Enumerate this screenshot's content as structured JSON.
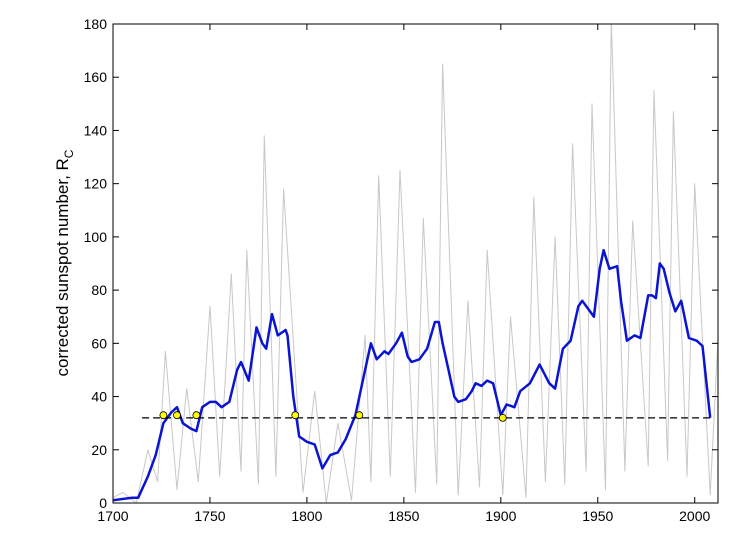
{
  "chart_data": {
    "type": "line",
    "ylabel": "corrected sunspot number, R",
    "ylabel_subscript": "C",
    "xlim": [
      1700,
      2012
    ],
    "xticks": [
      1700,
      1750,
      1800,
      1850,
      1900,
      1950,
      2000
    ],
    "ylim": [
      0,
      180
    ],
    "yticks": [
      0,
      20,
      40,
      60,
      80,
      100,
      120,
      140,
      160,
      180
    ],
    "series": [
      {
        "color": "#c8c8c8",
        "width": 1,
        "x": [
          1700,
          1705,
          1712,
          1718,
          1723,
          1727,
          1733,
          1738,
          1744,
          1750,
          1755,
          1761,
          1766,
          1769,
          1775,
          1778,
          1784,
          1788,
          1798,
          1804,
          1810,
          1816,
          1823,
          1830,
          1833,
          1837,
          1843,
          1848,
          1856,
          1860,
          1867,
          1870,
          1878,
          1883,
          1889,
          1893,
          1901,
          1905,
          1913,
          1917,
          1923,
          1928,
          1933,
          1937,
          1944,
          1947,
          1954,
          1957,
          1964,
          1968,
          1976,
          1979,
          1986,
          1989,
          1996,
          2000,
          2008,
          2012
        ],
        "values": [
          2,
          4,
          0,
          20,
          8,
          57,
          5,
          43,
          8,
          74,
          10,
          86,
          12,
          95,
          7,
          138,
          10,
          118,
          4,
          42,
          0,
          30,
          1,
          63,
          8,
          123,
          10,
          125,
          4,
          107,
          7,
          165,
          3,
          76,
          6,
          95,
          3,
          70,
          2,
          115,
          8,
          100,
          7,
          135,
          12,
          150,
          5,
          182,
          12,
          106,
          14,
          155,
          16,
          147,
          10,
          120,
          3,
          62
        ]
      },
      {
        "color": "#0a14d2",
        "width": 2.5,
        "x": [
          1700,
          1710,
          1713,
          1718,
          1722,
          1726,
          1730,
          1733,
          1736,
          1740,
          1743,
          1746,
          1750,
          1753,
          1756,
          1760,
          1764,
          1766,
          1770,
          1774,
          1777,
          1779,
          1782,
          1785,
          1789,
          1790,
          1793,
          1796,
          1800,
          1804,
          1808,
          1812,
          1816,
          1820,
          1825,
          1830,
          1833,
          1836,
          1840,
          1842,
          1846,
          1849,
          1852,
          1854,
          1858,
          1862,
          1866,
          1868,
          1870,
          1873,
          1876,
          1878,
          1882,
          1885,
          1887,
          1890,
          1893,
          1896,
          1900,
          1903,
          1907,
          1910,
          1915,
          1920,
          1925,
          1928,
          1932,
          1936,
          1940,
          1942,
          1946,
          1948,
          1951,
          1953,
          1956,
          1960,
          1962,
          1965,
          1969,
          1972,
          1976,
          1978,
          1980,
          1982,
          1984,
          1987,
          1990,
          1993,
          1997,
          2001,
          2004,
          2008
        ],
        "values": [
          1,
          2,
          2,
          10,
          18,
          30,
          34,
          36,
          30,
          28,
          27,
          36,
          38,
          38,
          36,
          38,
          50,
          53,
          46,
          66,
          60,
          58,
          71,
          63,
          65,
          63,
          40,
          25,
          23,
          22,
          13,
          18,
          19,
          24,
          33,
          50,
          60,
          54,
          57,
          56,
          60,
          64,
          55,
          53,
          54,
          58,
          68,
          68,
          60,
          50,
          40,
          38,
          39,
          42,
          45,
          44,
          46,
          45,
          33,
          37,
          36,
          42,
          45,
          52,
          45,
          43,
          58,
          61,
          74,
          76,
          72,
          70,
          88,
          95,
          88,
          89,
          76,
          61,
          63,
          62,
          78,
          78,
          77,
          90,
          88,
          79,
          72,
          76,
          62,
          61,
          59,
          32
        ]
      }
    ],
    "hline": {
      "x": [
        1715,
        2008
      ],
      "y": 32
    },
    "points": {
      "color": "#ffff00",
      "x": [
        1726,
        1733,
        1743,
        1794,
        1827,
        1901
      ],
      "values": [
        33,
        33,
        33,
        33,
        33,
        32
      ]
    }
  }
}
